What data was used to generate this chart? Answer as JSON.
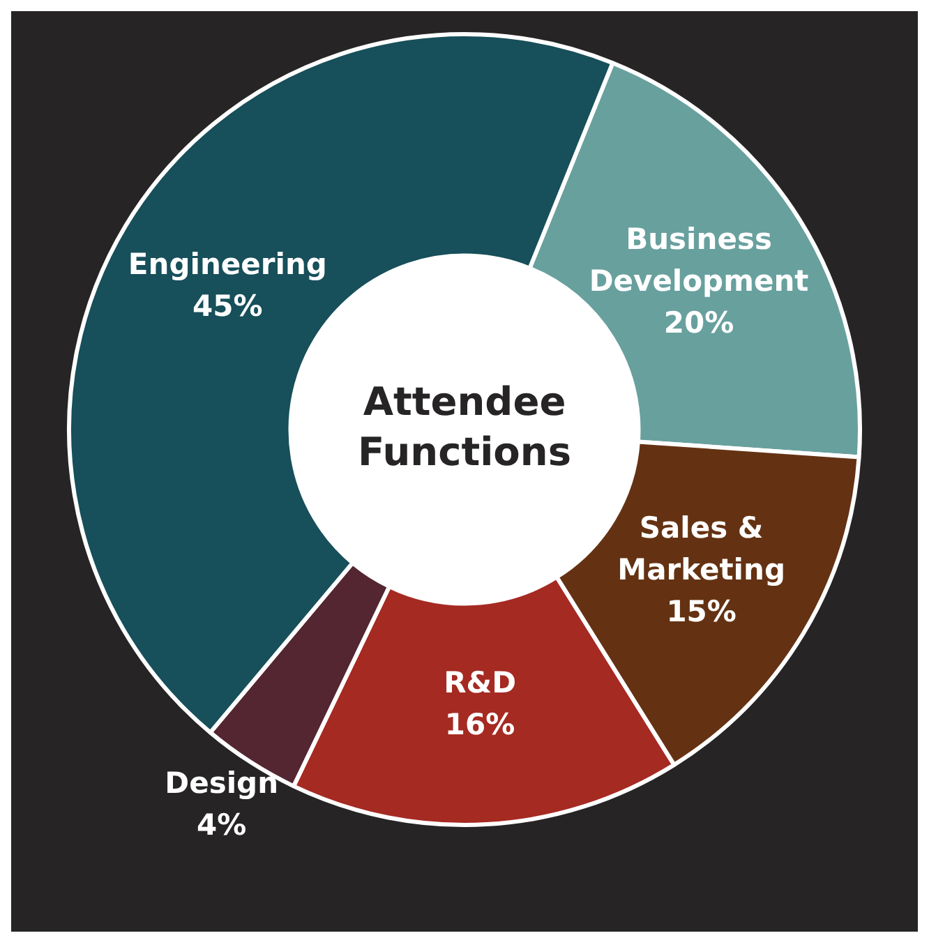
{
  "chart_data": {
    "type": "donut",
    "title": "Attendee Functions",
    "categories": [
      "Business Development",
      "Sales & Marketing",
      "R&D",
      "Design",
      "Engineering"
    ],
    "values": [
      20,
      15,
      16,
      4,
      45
    ],
    "colors": [
      "#68a09e",
      "#643212",
      "#a52a22",
      "#532631",
      "#174f5a"
    ],
    "value_labels": [
      "20%",
      "15%",
      "16%",
      "4%",
      "45%"
    ],
    "legend": false
  }
}
